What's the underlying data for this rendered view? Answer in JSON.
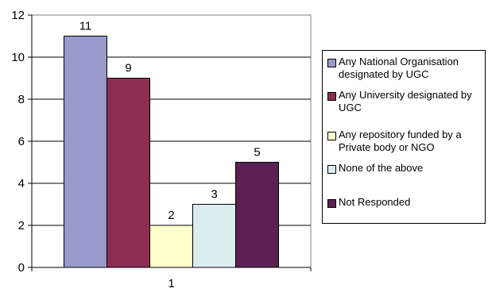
{
  "chart_data": {
    "type": "bar",
    "categories": [
      "1"
    ],
    "series": [
      {
        "name": "Any National Organisation designated by UGC",
        "values": [
          11
        ],
        "color": "#9999cc"
      },
      {
        "name": "Any University designated by UGC",
        "values": [
          9
        ],
        "color": "#8b2e52"
      },
      {
        "name": "Any repository funded by a Private body or NGO",
        "values": [
          2
        ],
        "color": "#ffffcc"
      },
      {
        "name": "None of the above",
        "values": [
          3
        ],
        "color": "#dcedf0"
      },
      {
        "name": "Not Responded",
        "values": [
          5
        ],
        "color": "#5c2153"
      }
    ],
    "title": "",
    "xlabel": "",
    "ylabel": "",
    "ylim": [
      0,
      12
    ],
    "yticks": [
      "0",
      "2",
      "4",
      "6",
      "8",
      "10",
      "12"
    ],
    "data_labels": [
      "11",
      "9",
      "2",
      "3",
      "5"
    ],
    "grid": true,
    "legend_position": "right"
  }
}
